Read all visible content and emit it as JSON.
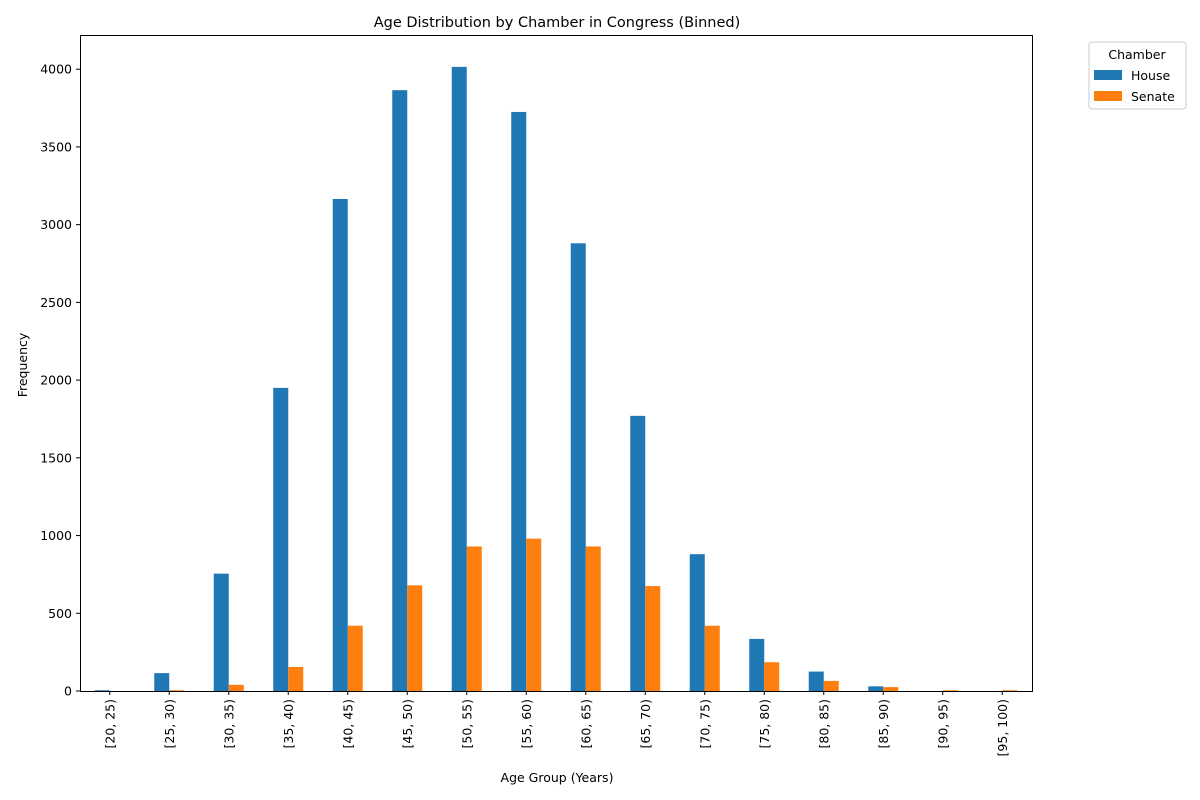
{
  "chart_data": {
    "type": "bar",
    "title": "Age Distribution by Chamber in Congress (Binned)",
    "xlabel": "Age Group (Years)",
    "ylabel": "Frequency",
    "ylim": [
      0,
      4220
    ],
    "yticks": [
      0,
      500,
      1000,
      1500,
      2000,
      2500,
      3000,
      3500,
      4000
    ],
    "grid": false,
    "legend": {
      "title": "Chamber",
      "placement": "outside-top-right"
    },
    "categories": [
      "[20, 25)",
      "[25, 30)",
      "[30, 35)",
      "[35, 40)",
      "[40, 45)",
      "[45, 50)",
      "[50, 55)",
      "[55, 60)",
      "[60, 65)",
      "[65, 70)",
      "[70, 75)",
      "[75, 80)",
      "[80, 85)",
      "[85, 90)",
      "[90, 95)",
      "[95, 100)"
    ],
    "series": [
      {
        "name": "House",
        "color": "#1f77b4",
        "values": [
          5,
          115,
          755,
          1950,
          3165,
          3865,
          4015,
          3725,
          2880,
          1770,
          880,
          335,
          125,
          30,
          0,
          0
        ]
      },
      {
        "name": "Senate",
        "color": "#ff7f0e",
        "values": [
          0,
          5,
          40,
          155,
          420,
          680,
          930,
          980,
          930,
          675,
          420,
          185,
          65,
          25,
          5,
          5
        ]
      }
    ]
  }
}
